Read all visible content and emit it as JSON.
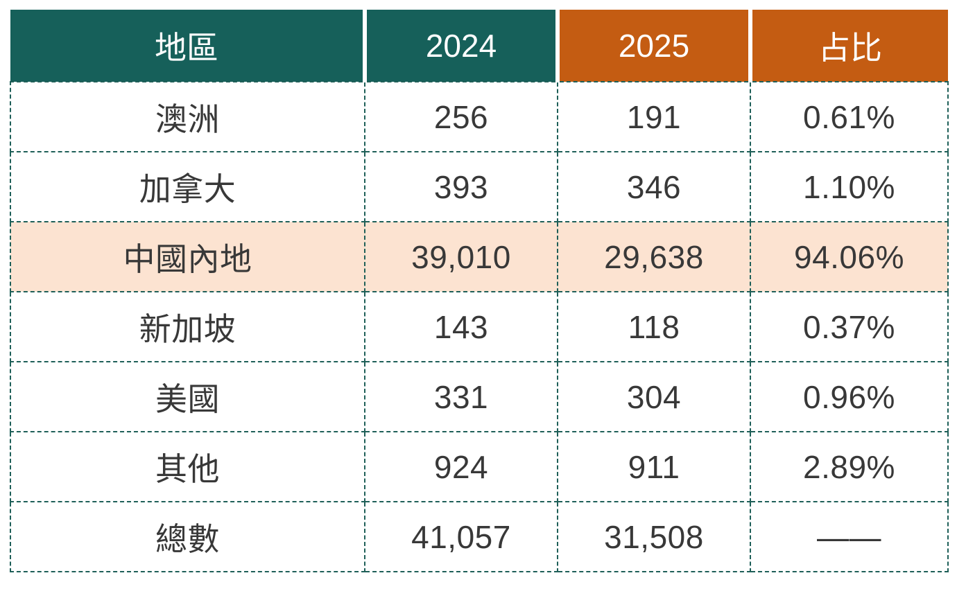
{
  "chart_data": {
    "type": "table",
    "columns": [
      "地區",
      "2024",
      "2025",
      "占比"
    ],
    "rows": [
      [
        "澳洲",
        "256",
        "191",
        "0.61%"
      ],
      [
        "加拿大",
        "393",
        "346",
        "1.10%"
      ],
      [
        "中國內地",
        "39,010",
        "29,638",
        "94.06%"
      ],
      [
        "新加坡",
        "143",
        "118",
        "0.37%"
      ],
      [
        "美國",
        "331",
        "304",
        "0.96%"
      ],
      [
        "其他",
        "924",
        "911",
        "2.89%"
      ],
      [
        "總數",
        "41,057",
        "31,508",
        "——"
      ]
    ],
    "highlighted_row_index": 2,
    "legend_position": "none",
    "grid": "dashed"
  },
  "colors": {
    "header_teal": "#16605A",
    "header_orange": "#C45C12",
    "highlight_row_bg": "#FCE3D1",
    "border_dash": "#1E5F58",
    "body_text": "#383838",
    "header_text": "#FFFFFF"
  }
}
